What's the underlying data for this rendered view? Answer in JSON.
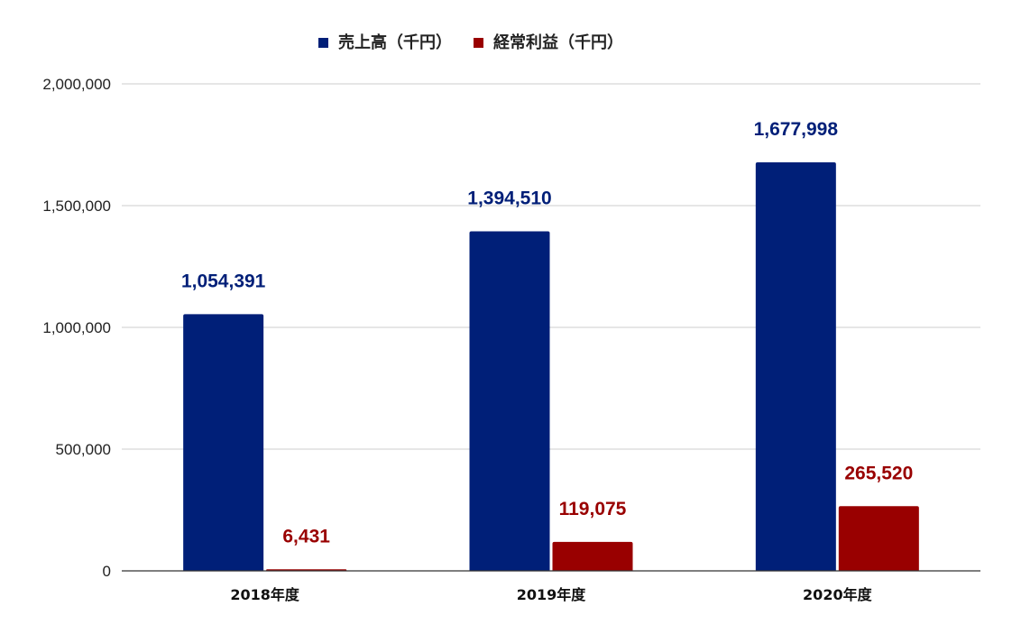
{
  "chart_data": {
    "type": "bar",
    "title": "",
    "xlabel": "",
    "ylabel": "",
    "categories": [
      "2018年度",
      "2019年度",
      "2020年度"
    ],
    "series": [
      {
        "name": "売上高（千円）",
        "color": "#001f78",
        "values": [
          1054391,
          1394510,
          1677998
        ]
      },
      {
        "name": "経常利益（千円）",
        "color": "#990000",
        "values": [
          6431,
          119075,
          265520
        ]
      }
    ],
    "data_labels": [
      [
        "1,054,391",
        "1,394,510",
        "1,677,998"
      ],
      [
        "6,431",
        "119,075",
        "265,520"
      ]
    ],
    "ylim": [
      0,
      2000000
    ],
    "yticks": [
      0,
      500000,
      1000000,
      1500000,
      2000000
    ],
    "ytick_labels": [
      "0",
      "500,000",
      "1,000,000",
      "1,500,000",
      "2,000,000"
    ],
    "grid": true,
    "legend_position": "top-center"
  }
}
